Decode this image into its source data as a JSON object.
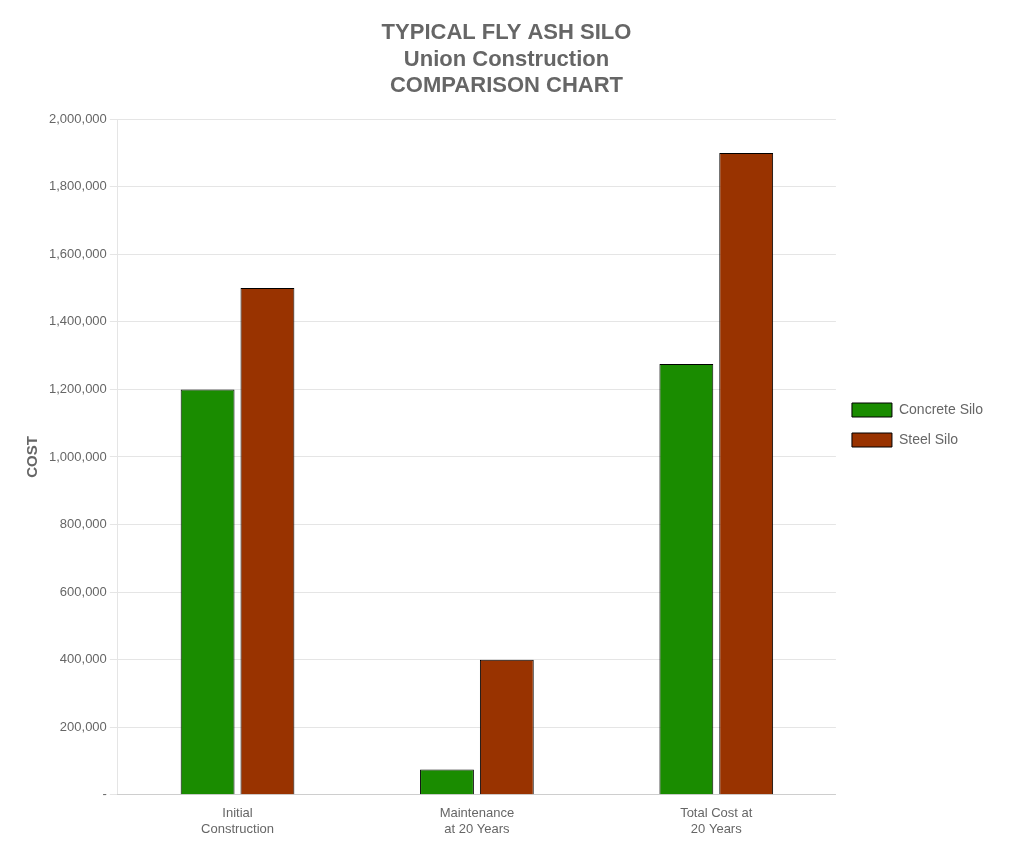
{
  "chart_data": {
    "type": "bar",
    "title": "TYPICAL FLY ASH SILO\nUnion Construction\nCOMPARISON CHART",
    "categories": [
      "Initial\nConstruction",
      "Maintenance\nat 20 Years",
      "Total Cost at\n20 Years"
    ],
    "series": [
      {
        "name": "Concrete Silo",
        "color": "#1a8c00",
        "values": [
          1200000,
          75000,
          1275000
        ]
      },
      {
        "name": "Steel Silo",
        "color": "#993300",
        "values": [
          1500000,
          400000,
          1900000
        ]
      }
    ],
    "ylabel": "COST",
    "ylim": [
      0,
      2000000
    ],
    "yticks": [
      {
        "value": 0,
        "label": "-"
      },
      {
        "value": 200000,
        "label": "200,000"
      },
      {
        "value": 400000,
        "label": "400,000"
      },
      {
        "value": 600000,
        "label": "600,000"
      },
      {
        "value": 800000,
        "label": "800,000"
      },
      {
        "value": 1000000,
        "label": "1,000,000"
      },
      {
        "value": 1200000,
        "label": "1,200,000"
      },
      {
        "value": 1400000,
        "label": "1,400,000"
      },
      {
        "value": 1600000,
        "label": "1,600,000"
      },
      {
        "value": 1800000,
        "label": "1,800,000"
      },
      {
        "value": 2000000,
        "label": "2,000,000"
      }
    ],
    "grid": true,
    "legend": "right"
  }
}
